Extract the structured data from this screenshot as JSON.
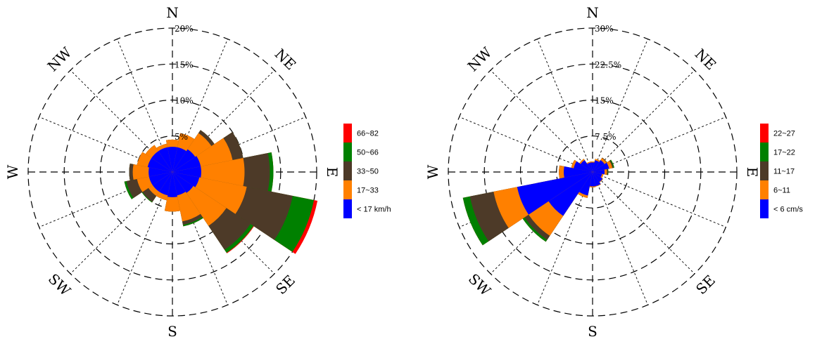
{
  "chart_data": [
    {
      "type": "wind-rose",
      "sectors": [
        "N",
        "NNE",
        "NE",
        "ENE",
        "E",
        "ESE",
        "SE",
        "SSE",
        "S",
        "SSW",
        "SW",
        "WSW",
        "W",
        "WNW",
        "NW",
        "NNW"
      ],
      "ring_labels": [
        "5%",
        "10%",
        "15%",
        "20%"
      ],
      "ring_values": [
        5,
        10,
        15,
        20
      ],
      "max_percent": 20,
      "compass_labels": {
        "n": "N",
        "ne": "NE",
        "e": "E",
        "se": "SE",
        "s": "S",
        "sw": "SW",
        "w": "W",
        "nw": "NW"
      },
      "bins": [
        {
          "label": "< 17  km/h",
          "color": "#0000ff",
          "values": [
            3.5,
            3.5,
            3.8,
            4.0,
            4.0,
            3.8,
            3.5,
            3.3,
            3.5,
            3.3,
            3.3,
            3.3,
            3.3,
            3.5,
            3.5,
            3.5
          ]
        },
        {
          "label": "17~33",
          "color": "#ff8000",
          "values": [
            4.5,
            5.5,
            6.5,
            8.5,
            10.0,
            10.5,
            9.0,
            7.0,
            5.5,
            4.0,
            4.0,
            5.0,
            5.5,
            5.0,
            4.5,
            4.0
          ]
        },
        {
          "label": "33~50",
          "color": "#4d3a28",
          "values": [
            4.5,
            5.5,
            7.0,
            10.0,
            13.5,
            17.0,
            13.0,
            7.5,
            5.5,
            4.0,
            5.0,
            6.5,
            6.0,
            5.0,
            4.5,
            4.0
          ]
        },
        {
          "label": "50~66",
          "color": "#008000",
          "values": [
            4.5,
            5.5,
            7.0,
            10.0,
            14.0,
            20.0,
            13.5,
            7.7,
            5.5,
            4.0,
            5.1,
            6.8,
            6.0,
            5.0,
            4.5,
            4.0
          ]
        },
        {
          "label": "66~82",
          "color": "#ff0000",
          "values": [
            4.5,
            5.5,
            7.0,
            10.0,
            14.0,
            20.5,
            13.6,
            7.7,
            5.5,
            4.0,
            5.1,
            6.8,
            6.0,
            5.0,
            4.5,
            4.0
          ]
        }
      ]
    },
    {
      "type": "wind-rose",
      "sectors": [
        "N",
        "NNE",
        "NE",
        "ENE",
        "E",
        "ESE",
        "SE",
        "SSE",
        "S",
        "SSW",
        "SW",
        "WSW",
        "W",
        "WNW",
        "NW",
        "NNW"
      ],
      "ring_labels": [
        "7.5%",
        "15%",
        "22.5%",
        "30%"
      ],
      "ring_values": [
        7.5,
        15,
        22.5,
        30
      ],
      "max_percent": 30,
      "compass_labels": {
        "n": "N",
        "ne": "NE",
        "e": "E",
        "se": "SE",
        "s": "S",
        "sw": "SW",
        "w": "W",
        "nw": "NW"
      },
      "bins": [
        {
          "label": "< 6  cm/s",
          "color": "#0000ff",
          "values": [
            2.0,
            2.5,
            3.0,
            3.5,
            2.5,
            2.0,
            2.5,
            3.0,
            3.0,
            5.0,
            11.0,
            16.0,
            6.0,
            4.0,
            3.0,
            2.0
          ]
        },
        {
          "label": "6~11",
          "color": "#ff8000",
          "values": [
            2.2,
            2.8,
            3.5,
            4.2,
            3.0,
            2.3,
            2.6,
            3.1,
            3.2,
            5.5,
            16.0,
            21.0,
            7.0,
            4.5,
            3.3,
            2.2
          ]
        },
        {
          "label": "11~17",
          "color": "#4d3a28",
          "values": [
            2.2,
            2.8,
            3.6,
            4.4,
            3.2,
            2.3,
            2.6,
            3.1,
            3.2,
            5.5,
            17.0,
            26.0,
            7.0,
            4.5,
            3.3,
            2.2
          ]
        },
        {
          "label": "17~22",
          "color": "#008000",
          "values": [
            2.2,
            2.8,
            3.6,
            4.6,
            3.3,
            2.3,
            2.6,
            3.1,
            3.2,
            5.5,
            17.5,
            27.5,
            7.0,
            4.5,
            3.3,
            2.2
          ]
        },
        {
          "label": "22~27",
          "color": "#ff0000",
          "values": [
            2.2,
            2.8,
            3.6,
            4.6,
            3.3,
            2.3,
            2.6,
            3.1,
            3.2,
            5.5,
            17.5,
            27.5,
            7.0,
            4.5,
            3.3,
            2.2
          ]
        }
      ]
    }
  ]
}
